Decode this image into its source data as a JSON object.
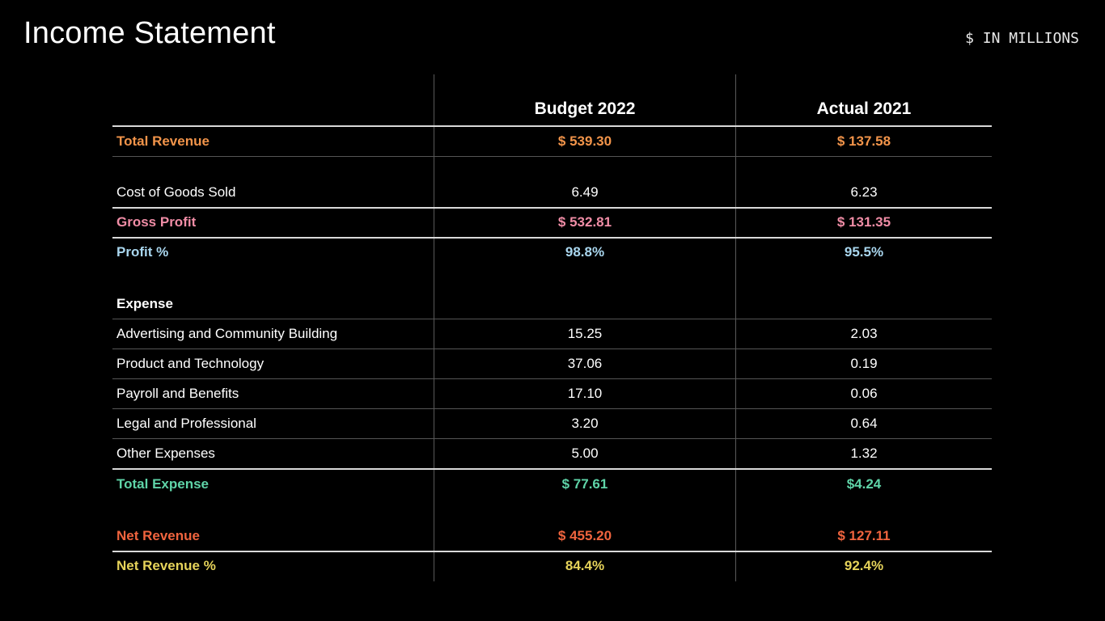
{
  "page": {
    "title": "Income Statement",
    "units": "$ IN MILLIONS"
  },
  "table": {
    "headers": [
      "",
      "Budget 2022",
      "Actual 2021"
    ],
    "rows": [
      {
        "label": "Total Revenue",
        "budget_2022": "$ 539.30",
        "actual_2021": "$ 137.58",
        "color": "#f2944a",
        "bold": true
      },
      {
        "label": "Cost of Goods Sold",
        "budget_2022": "6.49",
        "actual_2021": "6.23",
        "color": "#ffffff",
        "bold": false
      },
      {
        "label": "Gross Profit",
        "budget_2022": "$ 532.81",
        "actual_2021": "$ 131.35",
        "color": "#f08da6",
        "bold": true
      },
      {
        "label": "Profit %",
        "budget_2022": "98.8%",
        "actual_2021": "95.5%",
        "color": "#a9d6ee",
        "bold": true
      },
      {
        "label": "Expense",
        "budget_2022": "",
        "actual_2021": "",
        "color": "#ffffff",
        "bold": true
      },
      {
        "label": "Advertising and Community Building",
        "budget_2022": "15.25",
        "actual_2021": "2.03",
        "color": "#ffffff",
        "bold": false
      },
      {
        "label": "Product and Technology",
        "budget_2022": "37.06",
        "actual_2021": "0.19",
        "color": "#ffffff",
        "bold": false
      },
      {
        "label": "Payroll and Benefits",
        "budget_2022": "17.10",
        "actual_2021": "0.06",
        "color": "#ffffff",
        "bold": false
      },
      {
        "label": "Legal and Professional",
        "budget_2022": "3.20",
        "actual_2021": "0.64",
        "color": "#ffffff",
        "bold": false
      },
      {
        "label": "Other Expenses",
        "budget_2022": "5.00",
        "actual_2021": "1.32",
        "color": "#ffffff",
        "bold": false
      },
      {
        "label": "Total Expense",
        "budget_2022": "$ 77.61",
        "actual_2021": "$4.24",
        "color": "#5fd4a8",
        "bold": true
      },
      {
        "label": "Net Revenue",
        "budget_2022": "$ 455.20",
        "actual_2021": "$ 127.11",
        "color": "#f0643e",
        "bold": true
      },
      {
        "label": "Net Revenue %",
        "budget_2022": "84.4%",
        "actual_2021": "92.4%",
        "color": "#e6d35a",
        "bold": true
      }
    ]
  }
}
